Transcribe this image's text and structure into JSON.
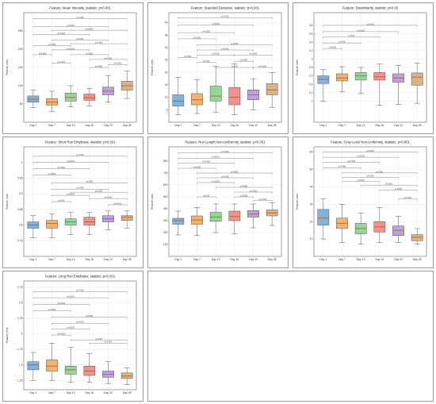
{
  "chart_data": [
    {
      "type": "box",
      "title": "Feature: Mean Intensity, statistic: p<0.001",
      "xlabel": "",
      "ylabel": "Feature units",
      "categories": [
        "Day 1",
        "Day 7",
        "Day 13",
        "Day 16",
        "Day 22",
        "Day 28"
      ],
      "ylim": [
        0,
        300
      ],
      "yticks": [
        50,
        100,
        150,
        200,
        250
      ],
      "boxes": [
        {
          "min": 40,
          "q1": 55,
          "median": 63,
          "q3": 72,
          "max": 88
        },
        {
          "min": 30,
          "q1": 47,
          "median": 55,
          "q3": 65,
          "max": 85
        },
        {
          "min": 42,
          "q1": 58,
          "median": 68,
          "q3": 80,
          "max": 100
        },
        {
          "min": 45,
          "q1": 60,
          "median": 67,
          "q3": 77,
          "max": 93
        },
        {
          "min": 55,
          "q1": 75,
          "median": 85,
          "q3": 96,
          "max": 128
        },
        {
          "min": 65,
          "q1": 88,
          "median": 100,
          "q3": 112,
          "max": 140
        }
      ],
      "comparisons": [
        {
          "from": 0,
          "to": 1,
          "y": 185,
          "label": "p<0.001"
        },
        {
          "from": 0,
          "to": 2,
          "y": 210,
          "label": "p<0.001"
        },
        {
          "from": 0,
          "to": 3,
          "y": 240,
          "label": "p<0.001"
        },
        {
          "from": 0,
          "to": 4,
          "y": 262,
          "label": "p<0.001"
        },
        {
          "from": 0,
          "to": 5,
          "y": 284,
          "label": "p<0.001"
        },
        {
          "from": 1,
          "to": 2,
          "y": 162,
          "label": "p<0.001"
        },
        {
          "from": 1,
          "to": 3,
          "y": 198,
          "label": "p<0.001"
        },
        {
          "from": 1,
          "to": 4,
          "y": 225,
          "label": "p<0.001"
        },
        {
          "from": 1,
          "to": 5,
          "y": 252,
          "label": "p<0.001"
        },
        {
          "from": 2,
          "to": 4,
          "y": 185,
          "label": "p<0.001"
        },
        {
          "from": 2,
          "to": 5,
          "y": 215,
          "label": "p<0.001"
        },
        {
          "from": 3,
          "to": 4,
          "y": 150,
          "label": "p<0.001"
        },
        {
          "from": 3,
          "to": 5,
          "y": 172,
          "label": "p<0.001"
        },
        {
          "from": 4,
          "to": 5,
          "y": 158,
          "label": "p<0.001"
        }
      ]
    },
    {
      "type": "box",
      "title": "Feature: Standard Deviation, statistic: p<0.001",
      "xlabel": "",
      "ylabel": "Feature units",
      "categories": [
        "Day 1",
        "Day 7",
        "Day 13",
        "Day 16",
        "Day 22",
        "Day 28"
      ],
      "ylim": [
        0,
        44
      ],
      "yticks": [
        5,
        10,
        15,
        20,
        25,
        30,
        35,
        40
      ],
      "boxes": [
        {
          "min": 3,
          "q1": 6.5,
          "median": 8.5,
          "q3": 11,
          "max": 18
        },
        {
          "min": 3.5,
          "q1": 7,
          "median": 9,
          "q3": 11.5,
          "max": 17
        },
        {
          "min": 4,
          "q1": 8.5,
          "median": 10.5,
          "q3": 14.5,
          "max": 22.5
        },
        {
          "min": 3,
          "q1": 7,
          "median": 10,
          "q3": 14,
          "max": 23.5
        },
        {
          "min": 5,
          "q1": 9,
          "median": 11,
          "q3": 13,
          "max": 17.5
        },
        {
          "min": 6,
          "q1": 11,
          "median": 13,
          "q3": 15.5,
          "max": 20
        }
      ],
      "comparisons": [
        {
          "from": 0,
          "to": 5,
          "y": 42,
          "label": "p<0.001"
        },
        {
          "from": 0,
          "to": 4,
          "y": 39,
          "label": "p<0.001"
        },
        {
          "from": 0,
          "to": 3,
          "y": 36,
          "label": "p<0.001"
        },
        {
          "from": 0,
          "to": 2,
          "y": 33.5,
          "label": "p<0.001"
        },
        {
          "from": 0,
          "to": 1,
          "y": 26,
          "label": "p<0.001"
        },
        {
          "from": 1,
          "to": 5,
          "y": 31,
          "label": "p<0.001"
        },
        {
          "from": 1,
          "to": 4,
          "y": 29,
          "label": "p<0.001"
        },
        {
          "from": 1,
          "to": 3,
          "y": 27,
          "label": "p<0.001"
        },
        {
          "from": 1,
          "to": 2,
          "y": 24,
          "label": "p<0.01"
        },
        {
          "from": 2,
          "to": 4,
          "y": 22,
          "label": "p<0.01"
        },
        {
          "from": 3,
          "to": 5,
          "y": 27,
          "label": "p<0.001"
        },
        {
          "from": 3,
          "to": 4,
          "y": 24.5,
          "label": "p<0.001"
        },
        {
          "from": 4,
          "to": 5,
          "y": 22,
          "label": "p<0.001"
        }
      ]
    },
    {
      "type": "box",
      "title": "Feature: Dissimilarity, statistic: p<0.05",
      "xlabel": "",
      "ylabel": "Feature units",
      "categories": [
        "Day 1",
        "Day 7",
        "Day 13",
        "Day 16",
        "Day 22",
        "Day 28"
      ],
      "ylim": [
        1.5,
        4.1
      ],
      "yticks": [
        2.0,
        2.2,
        2.4,
        2.6,
        2.8,
        3.0,
        3.2,
        3.4,
        3.6,
        3.8
      ],
      "boxes": [
        {
          "min": 2.0,
          "q1": 2.42,
          "median": 2.52,
          "q3": 2.6,
          "max": 2.75
        },
        {
          "min": 2.22,
          "q1": 2.48,
          "median": 2.55,
          "q3": 2.65,
          "max": 2.82
        },
        {
          "min": 2.18,
          "q1": 2.5,
          "median": 2.6,
          "q3": 2.68,
          "max": 2.8
        },
        {
          "min": 1.9,
          "q1": 2.5,
          "median": 2.58,
          "q3": 2.68,
          "max": 2.88
        },
        {
          "min": 1.92,
          "q1": 2.45,
          "median": 2.55,
          "q3": 2.65,
          "max": 2.85
        },
        {
          "min": 1.95,
          "q1": 2.38,
          "median": 2.57,
          "q3": 2.67,
          "max": 2.9
        }
      ],
      "comparisons": [
        {
          "from": 0,
          "to": 5,
          "y": 3.8,
          "label": "p<0.001"
        },
        {
          "from": 0,
          "to": 4,
          "y": 3.65,
          "label": "p<0.001"
        },
        {
          "from": 0,
          "to": 3,
          "y": 3.52,
          "label": "p<0.01"
        },
        {
          "from": 0,
          "to": 2,
          "y": 3.38,
          "label": "p<0.05"
        },
        {
          "from": 0,
          "to": 1,
          "y": 3.25,
          "label": "p<0.05"
        }
      ]
    },
    {
      "type": "box",
      "title": "Feature: Short Run Emphasis, statistic: p<0.001",
      "xlabel": "",
      "ylabel": "Feature units",
      "categories": [
        "Day 1",
        "Day 7",
        "Day 13",
        "Day 16",
        "Day 22",
        "Day 28"
      ],
      "ylim": [
        0.7,
        1.05
      ],
      "yticks": [
        0.75,
        0.8,
        0.85,
        0.9,
        0.95,
        1.0
      ],
      "boxes": [
        {
          "min": 0.76,
          "q1": 0.79,
          "median": 0.8,
          "q3": 0.81,
          "max": 0.83
        },
        {
          "min": 0.76,
          "q1": 0.79,
          "median": 0.805,
          "q3": 0.815,
          "max": 0.835
        },
        {
          "min": 0.77,
          "q1": 0.8,
          "median": 0.81,
          "q3": 0.82,
          "max": 0.84
        },
        {
          "min": 0.77,
          "q1": 0.8,
          "median": 0.81,
          "q3": 0.825,
          "max": 0.84
        },
        {
          "min": 0.785,
          "q1": 0.81,
          "median": 0.82,
          "q3": 0.83,
          "max": 0.845
        },
        {
          "min": 0.79,
          "q1": 0.815,
          "median": 0.825,
          "q3": 0.83,
          "max": 0.845
        }
      ],
      "comparisons": [
        {
          "from": 0,
          "to": 5,
          "y": 1.02,
          "label": "p<0.001"
        },
        {
          "from": 0,
          "to": 4,
          "y": 1.0,
          "label": "p<0.001"
        },
        {
          "from": 0,
          "to": 3,
          "y": 0.98,
          "label": "p<0.001"
        },
        {
          "from": 0,
          "to": 2,
          "y": 0.96,
          "label": "p<0.001"
        },
        {
          "from": 1,
          "to": 5,
          "y": 0.935,
          "label": "p<0.001"
        },
        {
          "from": 1,
          "to": 4,
          "y": 0.915,
          "label": "p<0.001"
        },
        {
          "from": 1,
          "to": 3,
          "y": 0.895,
          "label": "p<0.001"
        },
        {
          "from": 1,
          "to": 2,
          "y": 0.875,
          "label": "p<0.01"
        },
        {
          "from": 2,
          "to": 5,
          "y": 0.905,
          "label": "p<0.001"
        },
        {
          "from": 3,
          "to": 5,
          "y": 0.885,
          "label": "p<0.001"
        },
        {
          "from": 4,
          "to": 5,
          "y": 0.865,
          "label": "p<0.001"
        }
      ]
    },
    {
      "type": "box",
      "title": "Feature: Run Length Non-Uniformity, statistic: p<0.001",
      "xlabel": "",
      "ylabel": "Feature units",
      "categories": [
        "Day 1",
        "Day 7",
        "Day 13",
        "Day 16",
        "Day 22",
        "Day 28"
      ],
      "ylim": [
        0,
        920
      ],
      "yticks": [
        100,
        200,
        300,
        400,
        500,
        600,
        700,
        800
      ],
      "boxes": [
        {
          "min": 180,
          "q1": 270,
          "median": 300,
          "q3": 320,
          "max": 380
        },
        {
          "min": 175,
          "q1": 270,
          "median": 305,
          "q3": 340,
          "max": 410
        },
        {
          "min": 200,
          "q1": 295,
          "median": 330,
          "q3": 370,
          "max": 440
        },
        {
          "min": 190,
          "q1": 300,
          "median": 335,
          "q3": 380,
          "max": 440
        },
        {
          "min": 240,
          "q1": 330,
          "median": 355,
          "q3": 385,
          "max": 440
        },
        {
          "min": 260,
          "q1": 340,
          "median": 365,
          "q3": 390,
          "max": 450
        }
      ],
      "comparisons": [
        {
          "from": 0,
          "to": 5,
          "y": 870,
          "label": "p<0.001"
        },
        {
          "from": 0,
          "to": 4,
          "y": 825,
          "label": "p<0.001"
        },
        {
          "from": 0,
          "to": 3,
          "y": 785,
          "label": "p<0.001"
        },
        {
          "from": 0,
          "to": 2,
          "y": 740,
          "label": "p<0.001"
        },
        {
          "from": 1,
          "to": 5,
          "y": 700,
          "label": "p<0.001"
        },
        {
          "from": 1,
          "to": 4,
          "y": 660,
          "label": "p<0.001"
        },
        {
          "from": 1,
          "to": 3,
          "y": 620,
          "label": "p<0.001"
        },
        {
          "from": 1,
          "to": 2,
          "y": 500,
          "label": "p<0.05"
        },
        {
          "from": 2,
          "to": 5,
          "y": 580,
          "label": "p<0.001"
        },
        {
          "from": 3,
          "to": 5,
          "y": 540,
          "label": "p<0.001"
        },
        {
          "from": 3,
          "to": 4,
          "y": 500,
          "label": "p<0.001"
        },
        {
          "from": 4,
          "to": 5,
          "y": 470,
          "label": "p<0.001"
        }
      ]
    },
    {
      "type": "box",
      "title": "Feature: Gray Level Non-Uniformity, statistic: p<0.001",
      "xlabel": "",
      "ylabel": "Feature units",
      "categories": [
        "Day 1",
        "Day 7",
        "Day 13",
        "Day 16",
        "Day 22",
        "Day 28"
      ],
      "ylim": [
        0,
        63
      ],
      "yticks": [
        10,
        20,
        30,
        40,
        50,
        60
      ],
      "boxes": [
        {
          "min": 10,
          "q1": 18,
          "median": 22,
          "q3": 27,
          "max": 33
        },
        {
          "min": 8,
          "q1": 16,
          "median": 19,
          "q3": 22,
          "max": 30
        },
        {
          "min": 7,
          "q1": 13,
          "median": 16,
          "q3": 19,
          "max": 25
        },
        {
          "min": 8,
          "q1": 14,
          "median": 17,
          "q3": 20,
          "max": 28
        },
        {
          "min": 8,
          "q1": 12,
          "median": 15,
          "q3": 17.5,
          "max": 23
        },
        {
          "min": 7,
          "q1": 9,
          "median": 11,
          "q3": 12.5,
          "max": 16
        }
      ],
      "comparisons": [
        {
          "from": 0,
          "to": 5,
          "y": 60,
          "label": "p<0.001"
        },
        {
          "from": 0,
          "to": 4,
          "y": 57,
          "label": "p<0.001"
        },
        {
          "from": 0,
          "to": 3,
          "y": 54,
          "label": "p<0.001"
        },
        {
          "from": 0,
          "to": 2,
          "y": 51,
          "label": "p<0.001"
        },
        {
          "from": 1,
          "to": 5,
          "y": 48,
          "label": "p<0.001"
        },
        {
          "from": 1,
          "to": 4,
          "y": 45.5,
          "label": "p<0.001"
        },
        {
          "from": 1,
          "to": 3,
          "y": 43,
          "label": "p<0.001"
        },
        {
          "from": 2,
          "to": 5,
          "y": 41,
          "label": "p<0.001"
        },
        {
          "from": 3,
          "to": 5,
          "y": 38,
          "label": "p<0.001"
        },
        {
          "from": 4,
          "to": 5,
          "y": 33,
          "label": "p<0.001"
        }
      ]
    },
    {
      "type": "box",
      "title": "Feature: Long Run Emphasis, statistic: p<0.001",
      "xlabel": "",
      "ylabel": "Feature units",
      "categories": [
        "Day 1",
        "Day 7",
        "Day 13",
        "Day 16",
        "Day 22",
        "Day 28"
      ],
      "ylim": [
        1.1,
        2.85
      ],
      "yticks": [
        1.25,
        1.5,
        1.75,
        2.0,
        2.25,
        2.5,
        2.75
      ],
      "boxes": [
        {
          "min": 1.25,
          "q1": 1.42,
          "median": 1.5,
          "q3": 1.55,
          "max": 1.7
        },
        {
          "min": 1.25,
          "q1": 1.4,
          "median": 1.48,
          "q3": 1.58,
          "max": 1.85
        },
        {
          "min": 1.22,
          "q1": 1.35,
          "median": 1.42,
          "q3": 1.48,
          "max": 1.78
        },
        {
          "min": 1.22,
          "q1": 1.33,
          "median": 1.4,
          "q3": 1.48,
          "max": 1.68
        },
        {
          "min": 1.2,
          "q1": 1.3,
          "median": 1.35,
          "q3": 1.4,
          "max": 1.55
        },
        {
          "min": 1.18,
          "q1": 1.28,
          "median": 1.32,
          "q3": 1.37,
          "max": 1.45
        }
      ],
      "comparisons": [
        {
          "from": 0,
          "to": 5,
          "y": 2.68,
          "label": "p<0.001"
        },
        {
          "from": 0,
          "to": 4,
          "y": 2.58,
          "label": "p<0.001"
        },
        {
          "from": 0,
          "to": 3,
          "y": 2.47,
          "label": "p<0.001"
        },
        {
          "from": 0,
          "to": 2,
          "y": 2.37,
          "label": "p<0.001"
        },
        {
          "from": 1,
          "to": 5,
          "y": 2.27,
          "label": "p<0.001"
        },
        {
          "from": 1,
          "to": 4,
          "y": 2.17,
          "label": "p<0.001"
        },
        {
          "from": 1,
          "to": 3,
          "y": 2.08,
          "label": "p<0.001"
        },
        {
          "from": 1,
          "to": 2,
          "y": 1.98,
          "label": "p<0.001"
        },
        {
          "from": 2,
          "to": 5,
          "y": 1.9,
          "label": "p<0.05"
        },
        {
          "from": 3,
          "to": 5,
          "y": 1.85,
          "label": "p<0.001"
        }
      ]
    }
  ],
  "colors": {
    "boxes": [
      "#7fb3e0",
      "#f6b26b",
      "#93d89a",
      "#f4908e",
      "#b9a3e5",
      "#d9b48a"
    ],
    "median": "#b5651d"
  }
}
